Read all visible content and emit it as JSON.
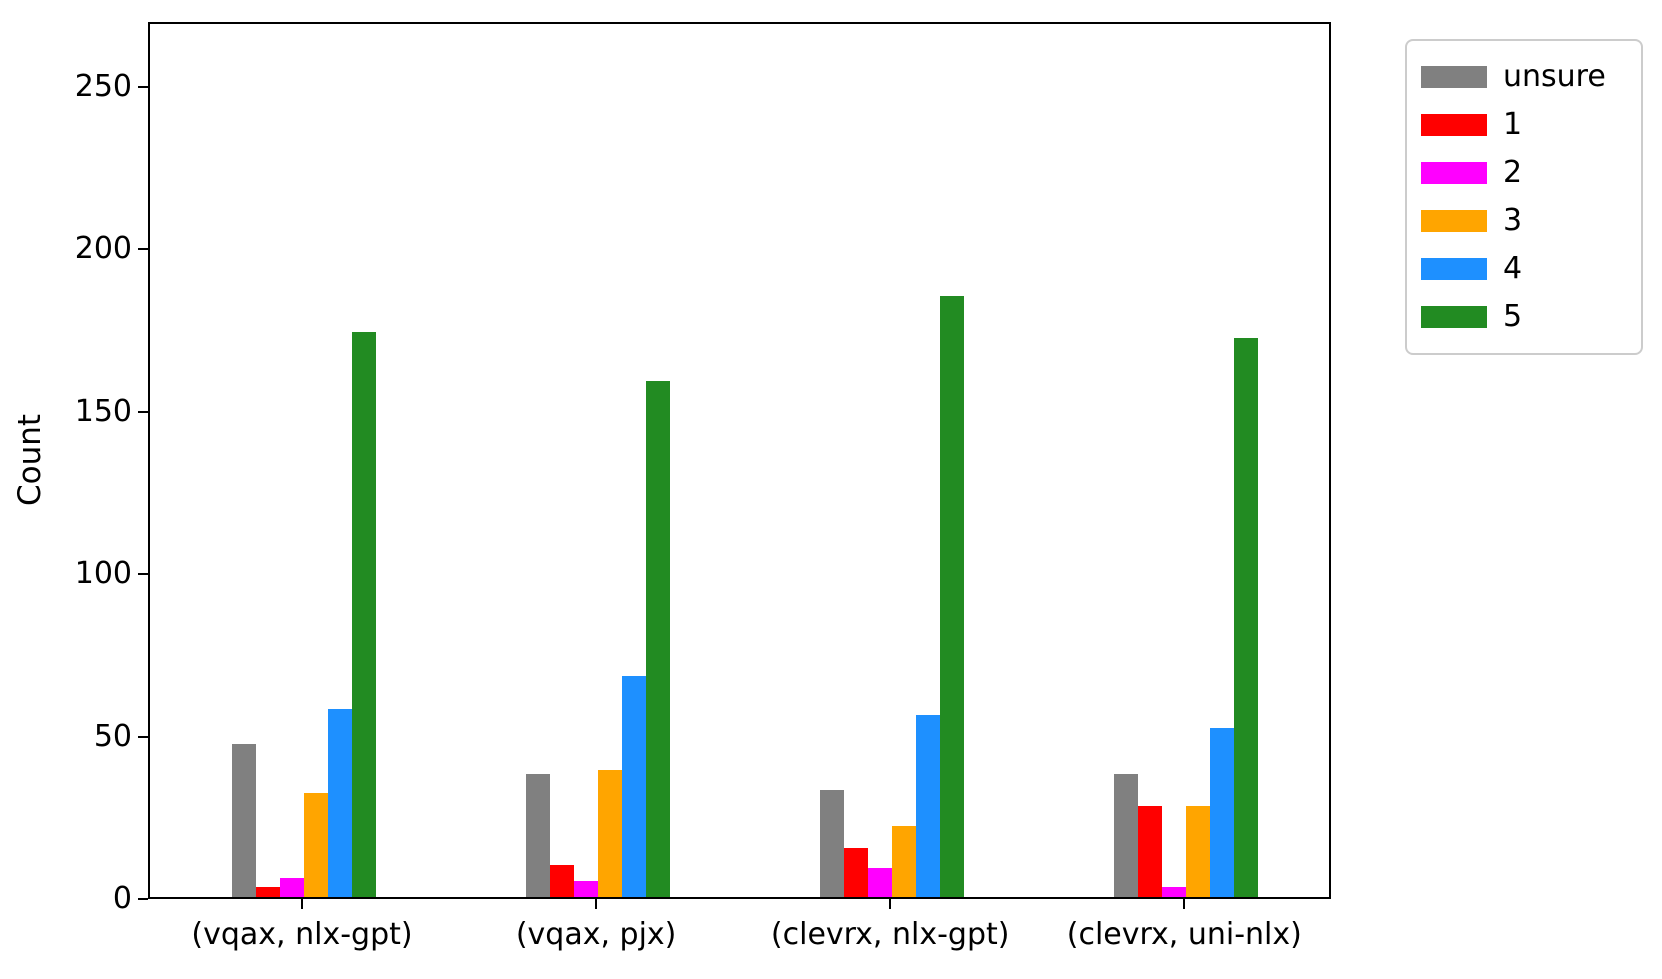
{
  "chart_data": {
    "type": "bar",
    "title": "",
    "xlabel": "",
    "ylabel": "Count",
    "ylim": [
      0,
      270
    ],
    "yticks": [
      0,
      50,
      100,
      150,
      200,
      250
    ],
    "grid": false,
    "legend_position": "upper-right-outside",
    "categories": [
      "(vqax, nlx-gpt)",
      "(vqax, pjx)",
      "(clevrx, nlx-gpt)",
      "(clevrx, uni-nlx)"
    ],
    "series": [
      {
        "name": "unsure",
        "color": "#808080",
        "values": [
          47,
          38,
          33,
          38
        ]
      },
      {
        "name": "1",
        "color": "#ff0000",
        "values": [
          3,
          10,
          15,
          28
        ]
      },
      {
        "name": "2",
        "color": "#ff00ff",
        "values": [
          6,
          5,
          9,
          3
        ]
      },
      {
        "name": "3",
        "color": "#ffa500",
        "values": [
          32,
          39,
          22,
          28
        ]
      },
      {
        "name": "4",
        "color": "#1e90ff",
        "values": [
          58,
          68,
          56,
          52
        ]
      },
      {
        "name": "5",
        "color": "#228b22",
        "values": [
          174,
          159,
          185,
          172
        ]
      }
    ]
  }
}
